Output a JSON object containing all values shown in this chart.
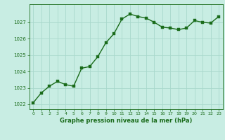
{
  "x": [
    0,
    1,
    2,
    3,
    4,
    5,
    6,
    7,
    8,
    9,
    10,
    11,
    12,
    13,
    14,
    15,
    16,
    17,
    18,
    19,
    20,
    21,
    22,
    23
  ],
  "y": [
    1022.1,
    1022.7,
    1023.1,
    1023.4,
    1023.2,
    1023.1,
    1024.2,
    1024.3,
    1024.9,
    1025.75,
    1026.3,
    1027.2,
    1027.5,
    1027.35,
    1027.25,
    1027.0,
    1026.7,
    1026.65,
    1026.55,
    1026.65,
    1027.1,
    1027.0,
    1026.95,
    1027.35
  ],
  "ylim": [
    1021.7,
    1028.1
  ],
  "yticks": [
    1022,
    1023,
    1024,
    1025,
    1026,
    1027
  ],
  "xlim": [
    -0.5,
    23.5
  ],
  "xticks": [
    0,
    1,
    2,
    3,
    4,
    5,
    6,
    7,
    8,
    9,
    10,
    11,
    12,
    13,
    14,
    15,
    16,
    17,
    18,
    19,
    20,
    21,
    22,
    23
  ],
  "line_color": "#1a6b1a",
  "marker_color": "#1a6b1a",
  "bg_color": "#c8ede3",
  "grid_color": "#a8d8cc",
  "xlabel": "Graphe pression niveau de la mer (hPa)",
  "xlabel_color": "#1a6b1a",
  "tick_color": "#1a6b1a",
  "marker_size": 2.5,
  "line_width": 1.0
}
